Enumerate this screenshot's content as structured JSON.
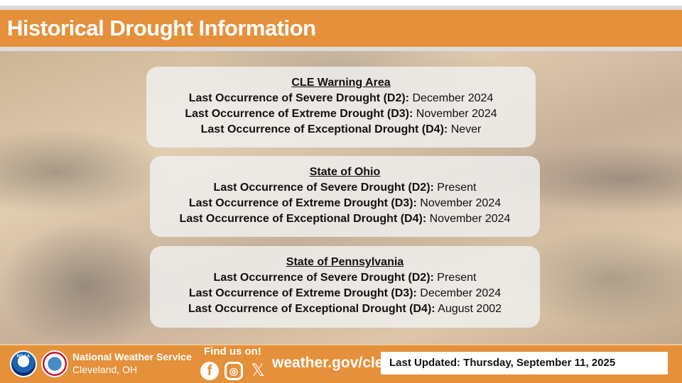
{
  "header": {
    "title": "Historical Drought Information"
  },
  "sections": [
    {
      "title": "CLE Warning Area",
      "rows": [
        {
          "label": "Last Occurrence of Severe Drought (D2):",
          "value": "December 2024"
        },
        {
          "label": "Last Occurrence of Extreme Drought (D3):",
          "value": "November 2024"
        },
        {
          "label": "Last Occurrence of Exceptional Drought (D4):",
          "value": "Never"
        }
      ]
    },
    {
      "title": "State of Ohio",
      "rows": [
        {
          "label": "Last Occurrence of Severe Drought (D2):",
          "value": "Present"
        },
        {
          "label": "Last Occurrence of Extreme Drought (D3):",
          "value": "November 2024"
        },
        {
          "label": "Last Occurrence of Exceptional Drought (D4):",
          "value": "November 2024"
        }
      ]
    },
    {
      "title": "State of Pennsylvania",
      "rows": [
        {
          "label": "Last Occurrence of Severe Drought (D2):",
          "value": "Present"
        },
        {
          "label": "Last Occurrence of Extreme Drought (D3):",
          "value": "December 2024"
        },
        {
          "label": "Last Occurrence of Exceptional Drought (D4):",
          "value": "August 2002"
        }
      ]
    }
  ],
  "footer": {
    "org": "National Weather Service",
    "office": "Cleveland, OH",
    "find_us": "Find us on!",
    "facebook_glyph": "f",
    "instagram_glyph": "◎",
    "x_glyph": "𝕏",
    "website": "weather.gov/cle",
    "last_updated": "Last Updated: Thursday, September 11, 2025",
    "noaa_logo_text": "NOAA"
  }
}
